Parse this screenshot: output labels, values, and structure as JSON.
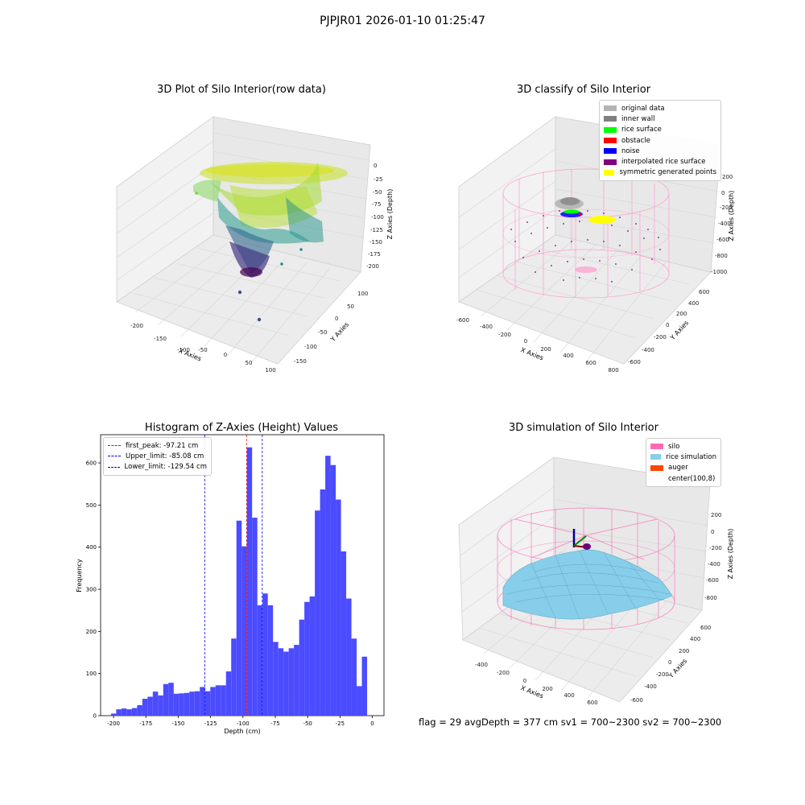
{
  "figure": {
    "suptitle": "PJPJR01 2026-01-10 01:25:47",
    "footer": "flag = 29  avgDepth = 377 cm  sv1 = 700~2300  sv2 = 700~2300"
  },
  "colors": {
    "histogram_bar": "#4b4bff",
    "first_peak_line": "#ff0000",
    "limit_lines": "#0000ff",
    "silo": "#ff69b4",
    "rice_simulation": "#87ceeb",
    "auger": "#ff4500"
  },
  "chart_data": [
    {
      "type": "scatter",
      "subtype": "3d",
      "title": "3D Plot of Silo Interior(row data)",
      "xlabel": "X Axies",
      "ylabel": "Y Axies",
      "zlabel": "Z Axies (Depth)",
      "xticks": [
        "-200",
        "-150",
        "-100",
        "-50",
        "0",
        "50",
        "100"
      ],
      "yticks": [
        "-150",
        "-100",
        "-50",
        "0",
        "50",
        "100"
      ],
      "zticks": [
        "0",
        "-25",
        "-50",
        "-75",
        "-100",
        "-125",
        "-150",
        "-175",
        "-200"
      ],
      "zlim": [
        -210,
        5
      ],
      "colormap": "viridis",
      "grid": true
    },
    {
      "type": "scatter",
      "subtype": "3d",
      "title": "3D classify of Silo Interior",
      "xlabel": "X Axies",
      "ylabel": "Y Axies",
      "zlabel": "Z Axies (Depth)",
      "xticks": [
        "-600",
        "-400",
        "-200",
        "0",
        "200",
        "400",
        "600",
        "800"
      ],
      "yticks": [
        "600",
        "400",
        "200",
        "0",
        "-200",
        "-400",
        "-600"
      ],
      "zticks": [
        "200",
        "0",
        "-200",
        "-400",
        "-600",
        "-800",
        "-1000"
      ],
      "legend": {
        "position": "upper right",
        "entries": [
          {
            "label": "original data",
            "color": "#b4b4b4"
          },
          {
            "label": "inner wall",
            "color": "#808080"
          },
          {
            "label": "rice surface",
            "color": "#00ff00"
          },
          {
            "label": "obstacle",
            "color": "#ff0000"
          },
          {
            "label": "noise",
            "color": "#0000ff"
          },
          {
            "label": "interpolated rice surface",
            "color": "#800080"
          },
          {
            "label": "symmetric generated points",
            "color": "#ffff00"
          }
        ]
      },
      "grid": true
    },
    {
      "type": "bar",
      "subtype": "histogram",
      "title": "Histogram of Z-Axies (Height) Values",
      "xlabel": "Depth (cm)",
      "ylabel": "Frequency",
      "xlim": [
        -210,
        9
      ],
      "ylim": [
        0,
        667
      ],
      "xticks": [
        -200,
        -175,
        -150,
        -125,
        -100,
        -75,
        -50,
        -25,
        0
      ],
      "yticks": [
        0,
        100,
        200,
        300,
        400,
        500,
        600
      ],
      "bin_start": -202,
      "bin_width": 4.04,
      "values": [
        5,
        15,
        17,
        15,
        18,
        25,
        40,
        45,
        57,
        48,
        75,
        78,
        52,
        53,
        54,
        57,
        58,
        68,
        58,
        68,
        72,
        72,
        105,
        183,
        463,
        402,
        637,
        470,
        262,
        290,
        262,
        175,
        160,
        152,
        160,
        168,
        228,
        270,
        283,
        487,
        537,
        617,
        595,
        513,
        390,
        278,
        183,
        70,
        140
      ],
      "vlines": [
        {
          "label": "first_peak: -97.21 cm",
          "x": -97.21,
          "color": "#ff0000"
        },
        {
          "label": "Upper_limit: -85.08 cm",
          "x": -85.08,
          "color": "#0000ff"
        },
        {
          "label": "Lower_limit: -129.54 cm",
          "x": -129.54,
          "color": "#0000ff"
        }
      ],
      "legend": {
        "position": "upper left"
      },
      "grid": false
    },
    {
      "type": "area",
      "subtype": "3d-surface",
      "title": "3D simulation of Silo Interior",
      "xlabel": "X Axies",
      "ylabel": "Y Axies",
      "zlabel": "Z Axies (Depth)",
      "xticks": [
        "-400",
        "-200",
        "0",
        "200",
        "400",
        "600"
      ],
      "yticks": [
        "600",
        "400",
        "200",
        "0",
        "-200",
        "-400",
        "-600"
      ],
      "zticks": [
        "200",
        "0",
        "-200",
        "-400",
        "-600",
        "-800"
      ],
      "legend": {
        "position": "upper right",
        "entries": [
          {
            "label": "silo",
            "color": "#ff69b4"
          },
          {
            "label": "rice simulation",
            "color": "#87ceeb"
          },
          {
            "label": "auger",
            "color": "#ff4500"
          },
          {
            "label": "center(100,8)",
            "color": ""
          }
        ]
      },
      "grid": true
    }
  ]
}
